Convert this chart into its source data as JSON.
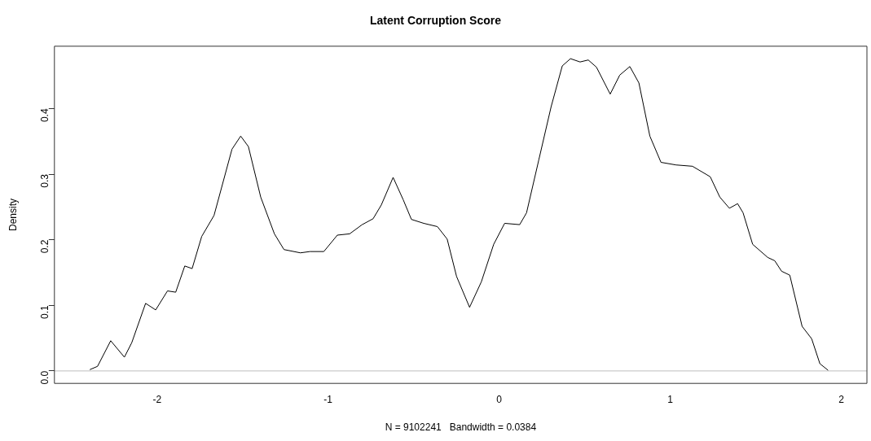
{
  "chart_data": {
    "type": "line",
    "title": "Latent Corruption Score",
    "xlabel": "N = 9102241   Bandwidth = 0.0384",
    "ylabel": "Density",
    "xlim": [
      -2.6,
      2.15
    ],
    "xticks": [
      -2,
      -1,
      0,
      1,
      2
    ],
    "ylim": [
      -0.019,
      0.495
    ],
    "yticks": [
      {
        "value": 0,
        "label": "0.0"
      },
      0.1,
      0.2,
      0.3,
      0.4
    ],
    "grid": false,
    "legend": false,
    "marker": "none",
    "line_style": "solid",
    "ref_lines": [
      {
        "axis": "y",
        "value": 0,
        "label": null,
        "color": "#bebebe"
      }
    ],
    "series": [
      {
        "color": "#000000",
        "x": [
          -2.393,
          -2.348,
          -2.271,
          -2.191,
          -2.148,
          -2.067,
          -2.008,
          -1.939,
          -1.891,
          -1.838,
          -1.795,
          -1.739,
          -1.667,
          -1.562,
          -1.511,
          -1.466,
          -1.394,
          -1.314,
          -1.258,
          -1.162,
          -1.106,
          -1.025,
          -0.946,
          -0.874,
          -0.801,
          -0.737,
          -0.689,
          -0.62,
          -0.561,
          -0.513,
          -0.441,
          -0.361,
          -0.304,
          -0.249,
          -0.173,
          -0.104,
          -0.032,
          0.032,
          0.12,
          0.16,
          0.232,
          0.304,
          0.369,
          0.417,
          0.473,
          0.521,
          0.569,
          0.649,
          0.705,
          0.764,
          0.817,
          0.881,
          0.946,
          1.034,
          1.13,
          1.234,
          1.29,
          1.346,
          1.394,
          1.426,
          1.482,
          1.57,
          1.611,
          1.651,
          1.699,
          1.771,
          1.827,
          1.875,
          1.923
        ],
        "values": [
          0.002,
          0.007,
          0.046,
          0.021,
          0.043,
          0.103,
          0.093,
          0.122,
          0.12,
          0.16,
          0.156,
          0.205,
          0.237,
          0.338,
          0.358,
          0.342,
          0.265,
          0.209,
          0.185,
          0.18,
          0.182,
          0.182,
          0.207,
          0.209,
          0.223,
          0.232,
          0.253,
          0.295,
          0.261,
          0.231,
          0.225,
          0.22,
          0.201,
          0.144,
          0.097,
          0.136,
          0.193,
          0.225,
          0.223,
          0.241,
          0.322,
          0.403,
          0.465,
          0.476,
          0.471,
          0.474,
          0.463,
          0.422,
          0.451,
          0.464,
          0.439,
          0.358,
          0.318,
          0.314,
          0.312,
          0.296,
          0.265,
          0.248,
          0.255,
          0.241,
          0.193,
          0.173,
          0.168,
          0.152,
          0.146,
          0.068,
          0.049,
          0.011,
          0.001
        ]
      }
    ]
  }
}
